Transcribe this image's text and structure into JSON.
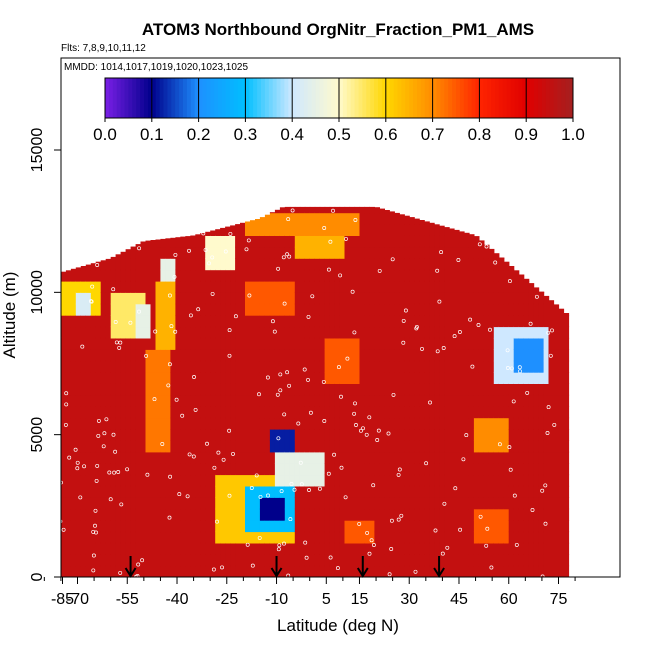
{
  "chart_data": {
    "type": "heatmap",
    "title": "ATOM3 Northbound OrgNitr_Fraction_PM1_AMS",
    "flights_label": "Flts: 7,8,9,10,11,12",
    "dates_label": "MMDD: 1014,1017,1019,1020,1023,1025",
    "xlabel": "Latitude (deg N)",
    "ylabel": "Altitude (m)",
    "xlim": [
      -85,
      85
    ],
    "ylim": [
      0,
      17000
    ],
    "x_ticks": [
      -85,
      -70,
      -55,
      -40,
      -25,
      -10,
      5,
      15,
      30,
      45,
      60,
      75
    ],
    "x_tick_labels": [
      "-85",
      "-70",
      "-55",
      "-40",
      "-25",
      "-10",
      "5",
      "15",
      "30",
      "45",
      "60",
      "75"
    ],
    "y_ticks": [
      0,
      5000,
      10000,
      15000
    ],
    "y_tick_labels": [
      "0",
      "5000",
      "10000",
      "15000"
    ],
    "colorbar": {
      "range": [
        0,
        1
      ],
      "ticks": [
        "0.0",
        "0.1",
        "0.2",
        "0.3",
        "0.4",
        "0.5",
        "0.6",
        "0.7",
        "0.8",
        "0.9",
        "1.0"
      ],
      "colors": [
        "#7a1fe6",
        "#00008b",
        "#1e90ff",
        "#00bfff",
        "#cfe8ff",
        "#fffacd",
        "#ffd700",
        "#ff8c00",
        "#ff2400",
        "#e00000",
        "#a52020"
      ]
    },
    "arrows_latitude": [
      -54,
      -10,
      16,
      39
    ],
    "altitude_envelope": [
      {
        "lat": -78,
        "top": 10600
      },
      {
        "lat": -60,
        "top": 11200
      },
      {
        "lat": -50,
        "top": 11800
      },
      {
        "lat": -35,
        "top": 12000
      },
      {
        "lat": -15,
        "top": 12600
      },
      {
        "lat": -8,
        "top": 13000
      },
      {
        "lat": 5,
        "top": 13000
      },
      {
        "lat": 20,
        "top": 13000
      },
      {
        "lat": 35,
        "top": 12500
      },
      {
        "lat": 50,
        "top": 12000
      },
      {
        "lat": 60,
        "top": 11000
      },
      {
        "lat": 70,
        "top": 10000
      },
      {
        "lat": 78,
        "top": 9200
      }
    ],
    "background_value": 0.95,
    "features": [
      {
        "lat": [
          -75,
          -63
        ],
        "alt": [
          9200,
          10400
        ],
        "value": 0.6
      },
      {
        "lat": [
          -71,
          -66
        ],
        "alt": [
          9200,
          9800
        ],
        "value": 0.42
      },
      {
        "lat": [
          -60,
          -50
        ],
        "alt": [
          8400,
          10000
        ],
        "value": 0.55
      },
      {
        "lat": [
          -53,
          -48
        ],
        "alt": [
          8600,
          9600
        ],
        "value": 0.45
      },
      {
        "lat": [
          -50,
          -42
        ],
        "alt": [
          4600,
          8000
        ],
        "value": 0.72
      },
      {
        "lat": [
          -46,
          -40
        ],
        "alt": [
          8200,
          10200
        ],
        "value": 0.65
      },
      {
        "lat": [
          -45,
          -40
        ],
        "alt": [
          10500,
          11200
        ],
        "value": 0.45
      },
      {
        "lat": [
          -32,
          -22
        ],
        "alt": [
          10800,
          11800
        ],
        "value": 0.5
      },
      {
        "lat": [
          -20,
          15
        ],
        "alt": [
          12000,
          12800
        ],
        "value": 0.7
      },
      {
        "lat": [
          -5,
          10
        ],
        "alt": [
          11300,
          12000
        ],
        "value": 0.65
      },
      {
        "lat": [
          -28,
          -5
        ],
        "alt": [
          1200,
          3500
        ],
        "value": 0.62
      },
      {
        "lat": [
          -20,
          -5
        ],
        "alt": [
          1600,
          3200
        ],
        "value": 0.3
      },
      {
        "lat": [
          -15,
          -8
        ],
        "alt": [
          2200,
          2800
        ],
        "value": 0.1
      },
      {
        "lat": [
          -12,
          -4
        ],
        "alt": [
          4400,
          5200
        ],
        "value": 0.12
      },
      {
        "lat": [
          -10,
          5
        ],
        "alt": [
          3400,
          4400
        ],
        "value": 0.45
      },
      {
        "lat": [
          10,
          20
        ],
        "alt": [
          1400,
          1800
        ],
        "value": 0.75
      },
      {
        "lat": [
          5,
          15
        ],
        "alt": [
          7000,
          8400
        ],
        "value": 0.75
      },
      {
        "lat": [
          -20,
          -5
        ],
        "alt": [
          9400,
          10200
        ],
        "value": 0.75
      },
      {
        "lat": [
          55,
          72
        ],
        "alt": [
          6800,
          8800
        ],
        "value": 0.4
      },
      {
        "lat": [
          62,
          70
        ],
        "alt": [
          7400,
          8200
        ],
        "value": 0.2
      },
      {
        "lat": [
          50,
          60
        ],
        "alt": [
          4600,
          5600
        ],
        "value": 0.7
      },
      {
        "lat": [
          50,
          60
        ],
        "alt": [
          1200,
          2200
        ],
        "value": 0.75
      }
    ]
  }
}
